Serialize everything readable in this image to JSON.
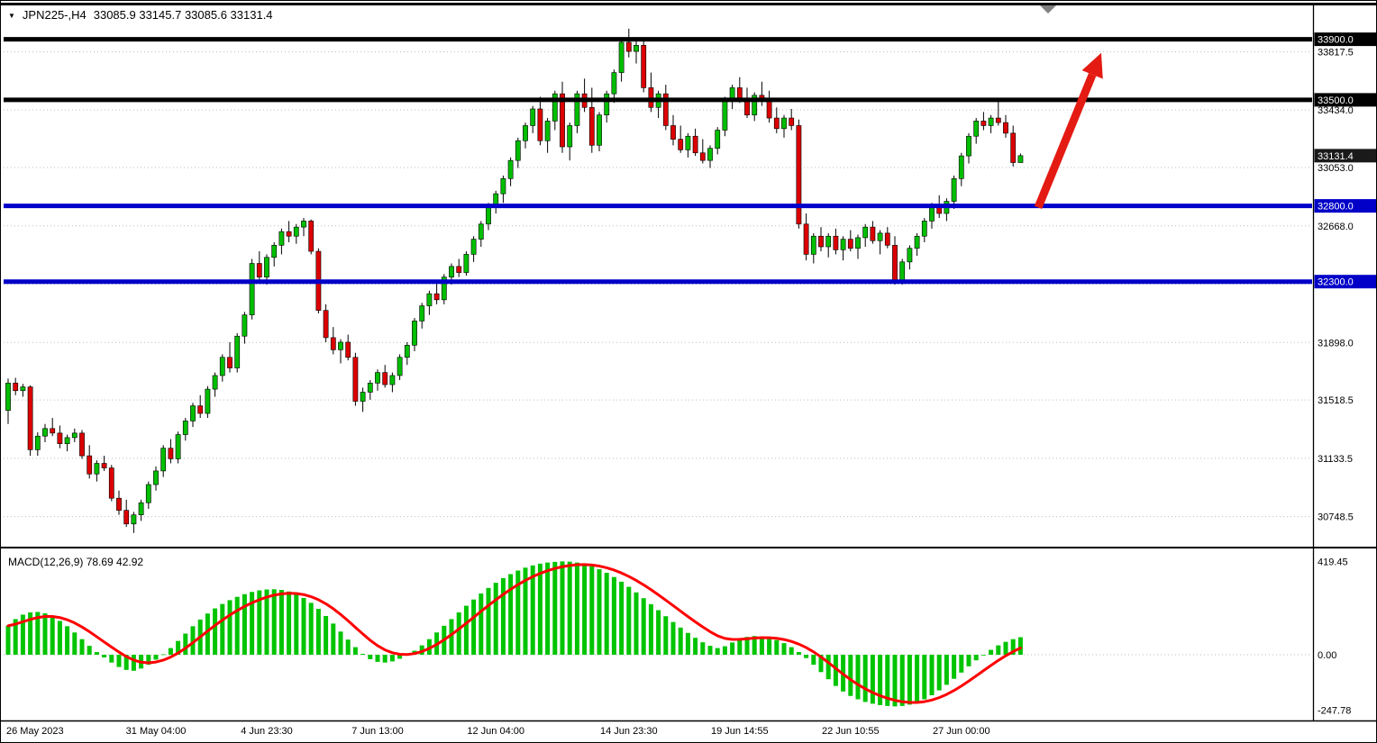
{
  "window": {
    "header": {
      "marker": "▼",
      "symbol_period": "JPN225-,H4",
      "ohlc": "33085.9 33145.7 33085.6 33131.4"
    }
  },
  "chart_data": {
    "type": "candlestick",
    "symbol": "JPN225-",
    "timeframe": "H4",
    "current_candle": {
      "open": 33085.9,
      "high": 33145.7,
      "low": 33085.6,
      "close": 33131.4
    },
    "colors": {
      "up": "#00BE00",
      "down": "#DC0001",
      "grid": "#bdbdbd",
      "arrow": "#E41B13",
      "blue_line": "#0000C8",
      "black_line": "#000000"
    },
    "price_axis": {
      "ticks": [
        33817.5,
        33434.0,
        33053.0,
        32668.0,
        32283.5,
        31898.0,
        31518.5,
        31133.5,
        30748.5
      ],
      "badges": [
        {
          "value": 33900.0,
          "bg": "#000000"
        },
        {
          "value": 33500.0,
          "bg": "#000000"
        },
        {
          "value": 33131.4,
          "bg": "#1a1a1a"
        },
        {
          "value": 32800.0,
          "bg": "#0000C8"
        },
        {
          "value": 32300.0,
          "bg": "#0000C8"
        }
      ]
    },
    "hlines": [
      {
        "value": 33900.0,
        "color": "#000000"
      },
      {
        "value": 33500.0,
        "color": "#000000"
      },
      {
        "value": 32800.0,
        "color": "#0000C8"
      },
      {
        "value": 32300.0,
        "color": "#0000C8"
      }
    ],
    "annotation_arrow": {
      "from_price": 32790,
      "to_price": 33810,
      "color": "#E41B13"
    },
    "time_axis": [
      {
        "text": "26 May 2023",
        "i": 0
      },
      {
        "text": "31 May 04:00",
        "i": 20
      },
      {
        "text": "4 Jun 23:30",
        "i": 35
      },
      {
        "text": "7 Jun 13:00",
        "i": 50
      },
      {
        "text": "12 Jun 04:00",
        "i": 66
      },
      {
        "text": "14 Jun 23:30",
        "i": 84
      },
      {
        "text": "19 Jun 14:55",
        "i": 99
      },
      {
        "text": "22 Jun 10:55",
        "i": 114
      },
      {
        "text": "27 Jun 00:00",
        "i": 129
      }
    ],
    "candles": [
      [
        31450,
        31660,
        31360,
        31630
      ],
      [
        31630,
        31665,
        31550,
        31580
      ],
      [
        31580,
        31625,
        31540,
        31605
      ],
      [
        31605,
        31615,
        31150,
        31190
      ],
      [
        31190,
        31305,
        31150,
        31280
      ],
      [
        31280,
        31360,
        31240,
        31330
      ],
      [
        31330,
        31400,
        31280,
        31300
      ],
      [
        31300,
        31350,
        31200,
        31230
      ],
      [
        31230,
        31290,
        31180,
        31270
      ],
      [
        31270,
        31330,
        31240,
        31300
      ],
      [
        31300,
        31320,
        31130,
        31150
      ],
      [
        31150,
        31220,
        31000,
        31030
      ],
      [
        31030,
        31120,
        30980,
        31100
      ],
      [
        31100,
        31150,
        31050,
        31070
      ],
      [
        31070,
        31090,
        30850,
        30870
      ],
      [
        30870,
        30920,
        30760,
        30790
      ],
      [
        30790,
        30860,
        30680,
        30700
      ],
      [
        30700,
        30780,
        30640,
        30760
      ],
      [
        30760,
        30860,
        30720,
        30840
      ],
      [
        30840,
        30980,
        30800,
        30960
      ],
      [
        30960,
        31080,
        30920,
        31050
      ],
      [
        31050,
        31220,
        31010,
        31200
      ],
      [
        31200,
        31260,
        31100,
        31130
      ],
      [
        31130,
        31310,
        31100,
        31290
      ],
      [
        31290,
        31400,
        31250,
        31380
      ],
      [
        31380,
        31500,
        31340,
        31480
      ],
      [
        31480,
        31550,
        31400,
        31430
      ],
      [
        31430,
        31610,
        31400,
        31590
      ],
      [
        31590,
        31700,
        31540,
        31680
      ],
      [
        31680,
        31820,
        31640,
        31800
      ],
      [
        31800,
        31900,
        31700,
        31730
      ],
      [
        31730,
        31960,
        31700,
        31940
      ],
      [
        31940,
        32100,
        31890,
        32080
      ],
      [
        32080,
        32450,
        32050,
        32420
      ],
      [
        32420,
        32500,
        32300,
        32330
      ],
      [
        32330,
        32480,
        32280,
        32460
      ],
      [
        32460,
        32560,
        32400,
        32540
      ],
      [
        32540,
        32650,
        32480,
        32630
      ],
      [
        32630,
        32700,
        32560,
        32600
      ],
      [
        32600,
        32680,
        32550,
        32660
      ],
      [
        32660,
        32720,
        32600,
        32700
      ],
      [
        32700,
        32710,
        32480,
        32500
      ],
      [
        32500,
        32520,
        32090,
        32110
      ],
      [
        32110,
        32150,
        31900,
        31930
      ],
      [
        31930,
        32000,
        31820,
        31850
      ],
      [
        31850,
        31920,
        31760,
        31900
      ],
      [
        31900,
        31950,
        31780,
        31800
      ],
      [
        31800,
        31830,
        31480,
        31510
      ],
      [
        31510,
        31600,
        31440,
        31570
      ],
      [
        31570,
        31650,
        31520,
        31630
      ],
      [
        31630,
        31720,
        31580,
        31700
      ],
      [
        31700,
        31750,
        31600,
        31620
      ],
      [
        31620,
        31700,
        31570,
        31680
      ],
      [
        31680,
        31820,
        31650,
        31800
      ],
      [
        31800,
        31900,
        31750,
        31880
      ],
      [
        31880,
        32060,
        31840,
        32040
      ],
      [
        32040,
        32160,
        31990,
        32140
      ],
      [
        32140,
        32240,
        32080,
        32220
      ],
      [
        32220,
        32300,
        32150,
        32180
      ],
      [
        32180,
        32350,
        32150,
        32330
      ],
      [
        32330,
        32420,
        32280,
        32400
      ],
      [
        32400,
        32450,
        32330,
        32360
      ],
      [
        32360,
        32500,
        32340,
        32480
      ],
      [
        32480,
        32600,
        32430,
        32580
      ],
      [
        32580,
        32700,
        32530,
        32680
      ],
      [
        32680,
        32820,
        32640,
        32800
      ],
      [
        32800,
        32900,
        32750,
        32880
      ],
      [
        32880,
        33000,
        32820,
        32980
      ],
      [
        32980,
        33120,
        32930,
        33100
      ],
      [
        33100,
        33250,
        33050,
        33230
      ],
      [
        33230,
        33350,
        33180,
        33330
      ],
      [
        33330,
        33460,
        33280,
        33440
      ],
      [
        33440,
        33520,
        33200,
        33230
      ],
      [
        33230,
        33380,
        33150,
        33360
      ],
      [
        33360,
        33560,
        33300,
        33540
      ],
      [
        33540,
        33620,
        33150,
        33190
      ],
      [
        33190,
        33350,
        33100,
        33330
      ],
      [
        33330,
        33560,
        33280,
        33540
      ],
      [
        33540,
        33640,
        33420,
        33450
      ],
      [
        33450,
        33580,
        33150,
        33200
      ],
      [
        33200,
        33420,
        33160,
        33400
      ],
      [
        33400,
        33560,
        33350,
        33540
      ],
      [
        33540,
        33700,
        33480,
        33680
      ],
      [
        33680,
        33900,
        33620,
        33880
      ],
      [
        33880,
        33970,
        33780,
        33820
      ],
      [
        33820,
        33900,
        33740,
        33860
      ],
      [
        33860,
        33890,
        33550,
        33580
      ],
      [
        33580,
        33680,
        33420,
        33450
      ],
      [
        33450,
        33560,
        33380,
        33540
      ],
      [
        33540,
        33600,
        33300,
        33330
      ],
      [
        33330,
        33400,
        33200,
        33240
      ],
      [
        33240,
        33330,
        33150,
        33170
      ],
      [
        33170,
        33280,
        33120,
        33260
      ],
      [
        33260,
        33310,
        33130,
        33150
      ],
      [
        33150,
        33240,
        33080,
        33100
      ],
      [
        33100,
        33200,
        33050,
        33180
      ],
      [
        33180,
        33320,
        33140,
        33300
      ],
      [
        33300,
        33520,
        33260,
        33500
      ],
      [
        33500,
        33600,
        33440,
        33580
      ],
      [
        33580,
        33650,
        33480,
        33510
      ],
      [
        33510,
        33580,
        33380,
        33400
      ],
      [
        33400,
        33550,
        33360,
        33530
      ],
      [
        33530,
        33620,
        33460,
        33490
      ],
      [
        33490,
        33560,
        33350,
        33380
      ],
      [
        33380,
        33450,
        33280,
        33310
      ],
      [
        33310,
        33400,
        33250,
        33380
      ],
      [
        33380,
        33440,
        33300,
        33330
      ],
      [
        33330,
        33370,
        32650,
        32680
      ],
      [
        32680,
        32750,
        32440,
        32480
      ],
      [
        32480,
        32620,
        32420,
        32600
      ],
      [
        32600,
        32660,
        32500,
        32530
      ],
      [
        32530,
        32620,
        32460,
        32600
      ],
      [
        32600,
        32650,
        32480,
        32510
      ],
      [
        32510,
        32600,
        32440,
        32580
      ],
      [
        32580,
        32640,
        32500,
        32520
      ],
      [
        32520,
        32610,
        32450,
        32590
      ],
      [
        32590,
        32680,
        32530,
        32660
      ],
      [
        32660,
        32700,
        32550,
        32570
      ],
      [
        32570,
        32640,
        32480,
        32620
      ],
      [
        32620,
        32660,
        32520,
        32540
      ],
      [
        32540,
        32600,
        32280,
        32310
      ],
      [
        32310,
        32450,
        32280,
        32430
      ],
      [
        32430,
        32540,
        32380,
        32520
      ],
      [
        32520,
        32620,
        32470,
        32600
      ],
      [
        32600,
        32720,
        32560,
        32700
      ],
      [
        32700,
        32820,
        32650,
        32800
      ],
      [
        32800,
        32870,
        32720,
        32750
      ],
      [
        32750,
        32850,
        32700,
        32830
      ],
      [
        32830,
        33000,
        32780,
        32980
      ],
      [
        32980,
        33150,
        32930,
        33130
      ],
      [
        33130,
        33280,
        33080,
        33260
      ],
      [
        33260,
        33380,
        33210,
        33360
      ],
      [
        33360,
        33420,
        33300,
        33330
      ],
      [
        33330,
        33400,
        33280,
        33380
      ],
      [
        33380,
        33500,
        33330,
        33350
      ],
      [
        33350,
        33400,
        33250,
        33280
      ],
      [
        33280,
        33330,
        33060,
        33085.9
      ],
      [
        33085.9,
        33145.7,
        33085.6,
        33131.4
      ]
    ],
    "macd": {
      "label": "MACD(12,26,9) 78.69 42.92",
      "macd_value": 78.69,
      "signal_value": 42.92,
      "ticks": [
        419.45,
        0.0,
        -247.78
      ],
      "histogram_color": "#00C400",
      "signal_color": "#FF0000",
      "histogram": [
        130,
        160,
        180,
        190,
        192,
        186,
        172,
        152,
        128,
        100,
        70,
        40,
        12,
        -12,
        -35,
        -55,
        -68,
        -72,
        -62,
        -45,
        -22,
        2,
        30,
        62,
        95,
        128,
        158,
        185,
        208,
        228,
        245,
        260,
        272,
        282,
        289,
        293,
        294,
        291,
        284,
        272,
        255,
        233,
        206,
        174,
        140,
        104,
        68,
        34,
        4,
        -20,
        -32,
        -35,
        -30,
        -18,
        -2,
        18,
        42,
        70,
        100,
        130,
        160,
        190,
        220,
        248,
        275,
        300,
        323,
        344,
        362,
        378,
        391,
        401,
        409,
        414,
        417,
        419,
        418,
        414,
        407,
        397,
        384,
        368,
        349,
        328,
        305,
        280,
        254,
        227,
        200,
        173,
        147,
        122,
        98,
        76,
        56,
        40,
        30,
        38,
        55,
        70,
        80,
        84,
        82,
        76,
        66,
        52,
        34,
        12,
        -15,
        -45,
        -78,
        -110,
        -140,
        -165,
        -185,
        -200,
        -212,
        -220,
        -226,
        -230,
        -232,
        -230,
        -224,
        -214,
        -200,
        -182,
        -160,
        -135,
        -108,
        -80,
        -52,
        -25,
        0,
        22,
        42,
        58,
        70,
        78.69
      ]
    }
  }
}
